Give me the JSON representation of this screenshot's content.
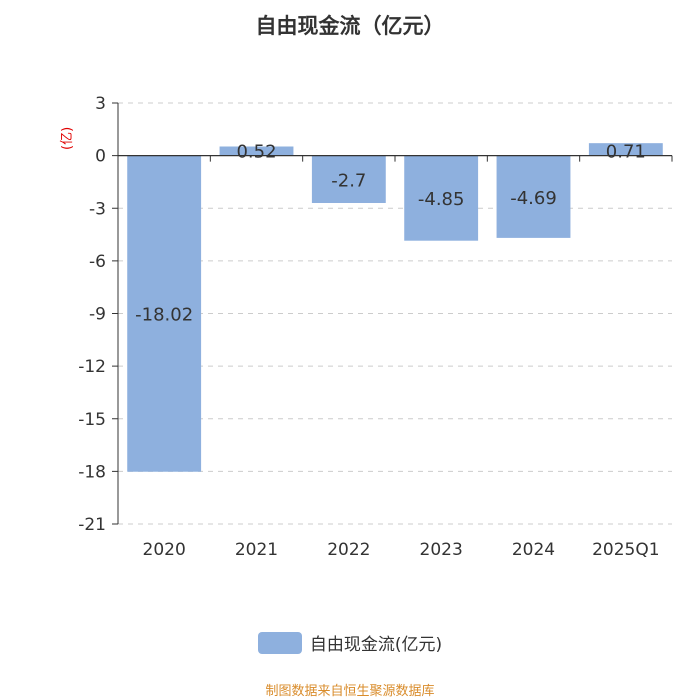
{
  "title": "自由现金流（亿元）",
  "unit_label": "(亿)",
  "footer": "制图数据来自恒生聚源数据库",
  "colors": {
    "bar": "#8eb0de",
    "grid": "#cccccc",
    "axis": "#333333",
    "text": "#333333",
    "unit": "#e00000",
    "footer": "#d98c2b"
  },
  "chart_data": {
    "type": "bar",
    "title": "自由现金流（亿元）",
    "ylabel": "(亿)",
    "categories": [
      "2020",
      "2021",
      "2022",
      "2023",
      "2024",
      "2025Q1"
    ],
    "series": [
      {
        "name": "自由现金流(亿元)",
        "values": [
          -18.02,
          0.52,
          -2.7,
          -4.85,
          -4.69,
          0.71
        ]
      }
    ],
    "ylim": [
      -21,
      3
    ],
    "yticks": [
      3,
      0,
      -3,
      -6,
      -9,
      -12,
      -15,
      -18,
      -21
    ],
    "grid": true,
    "legend": "bottom-center"
  }
}
